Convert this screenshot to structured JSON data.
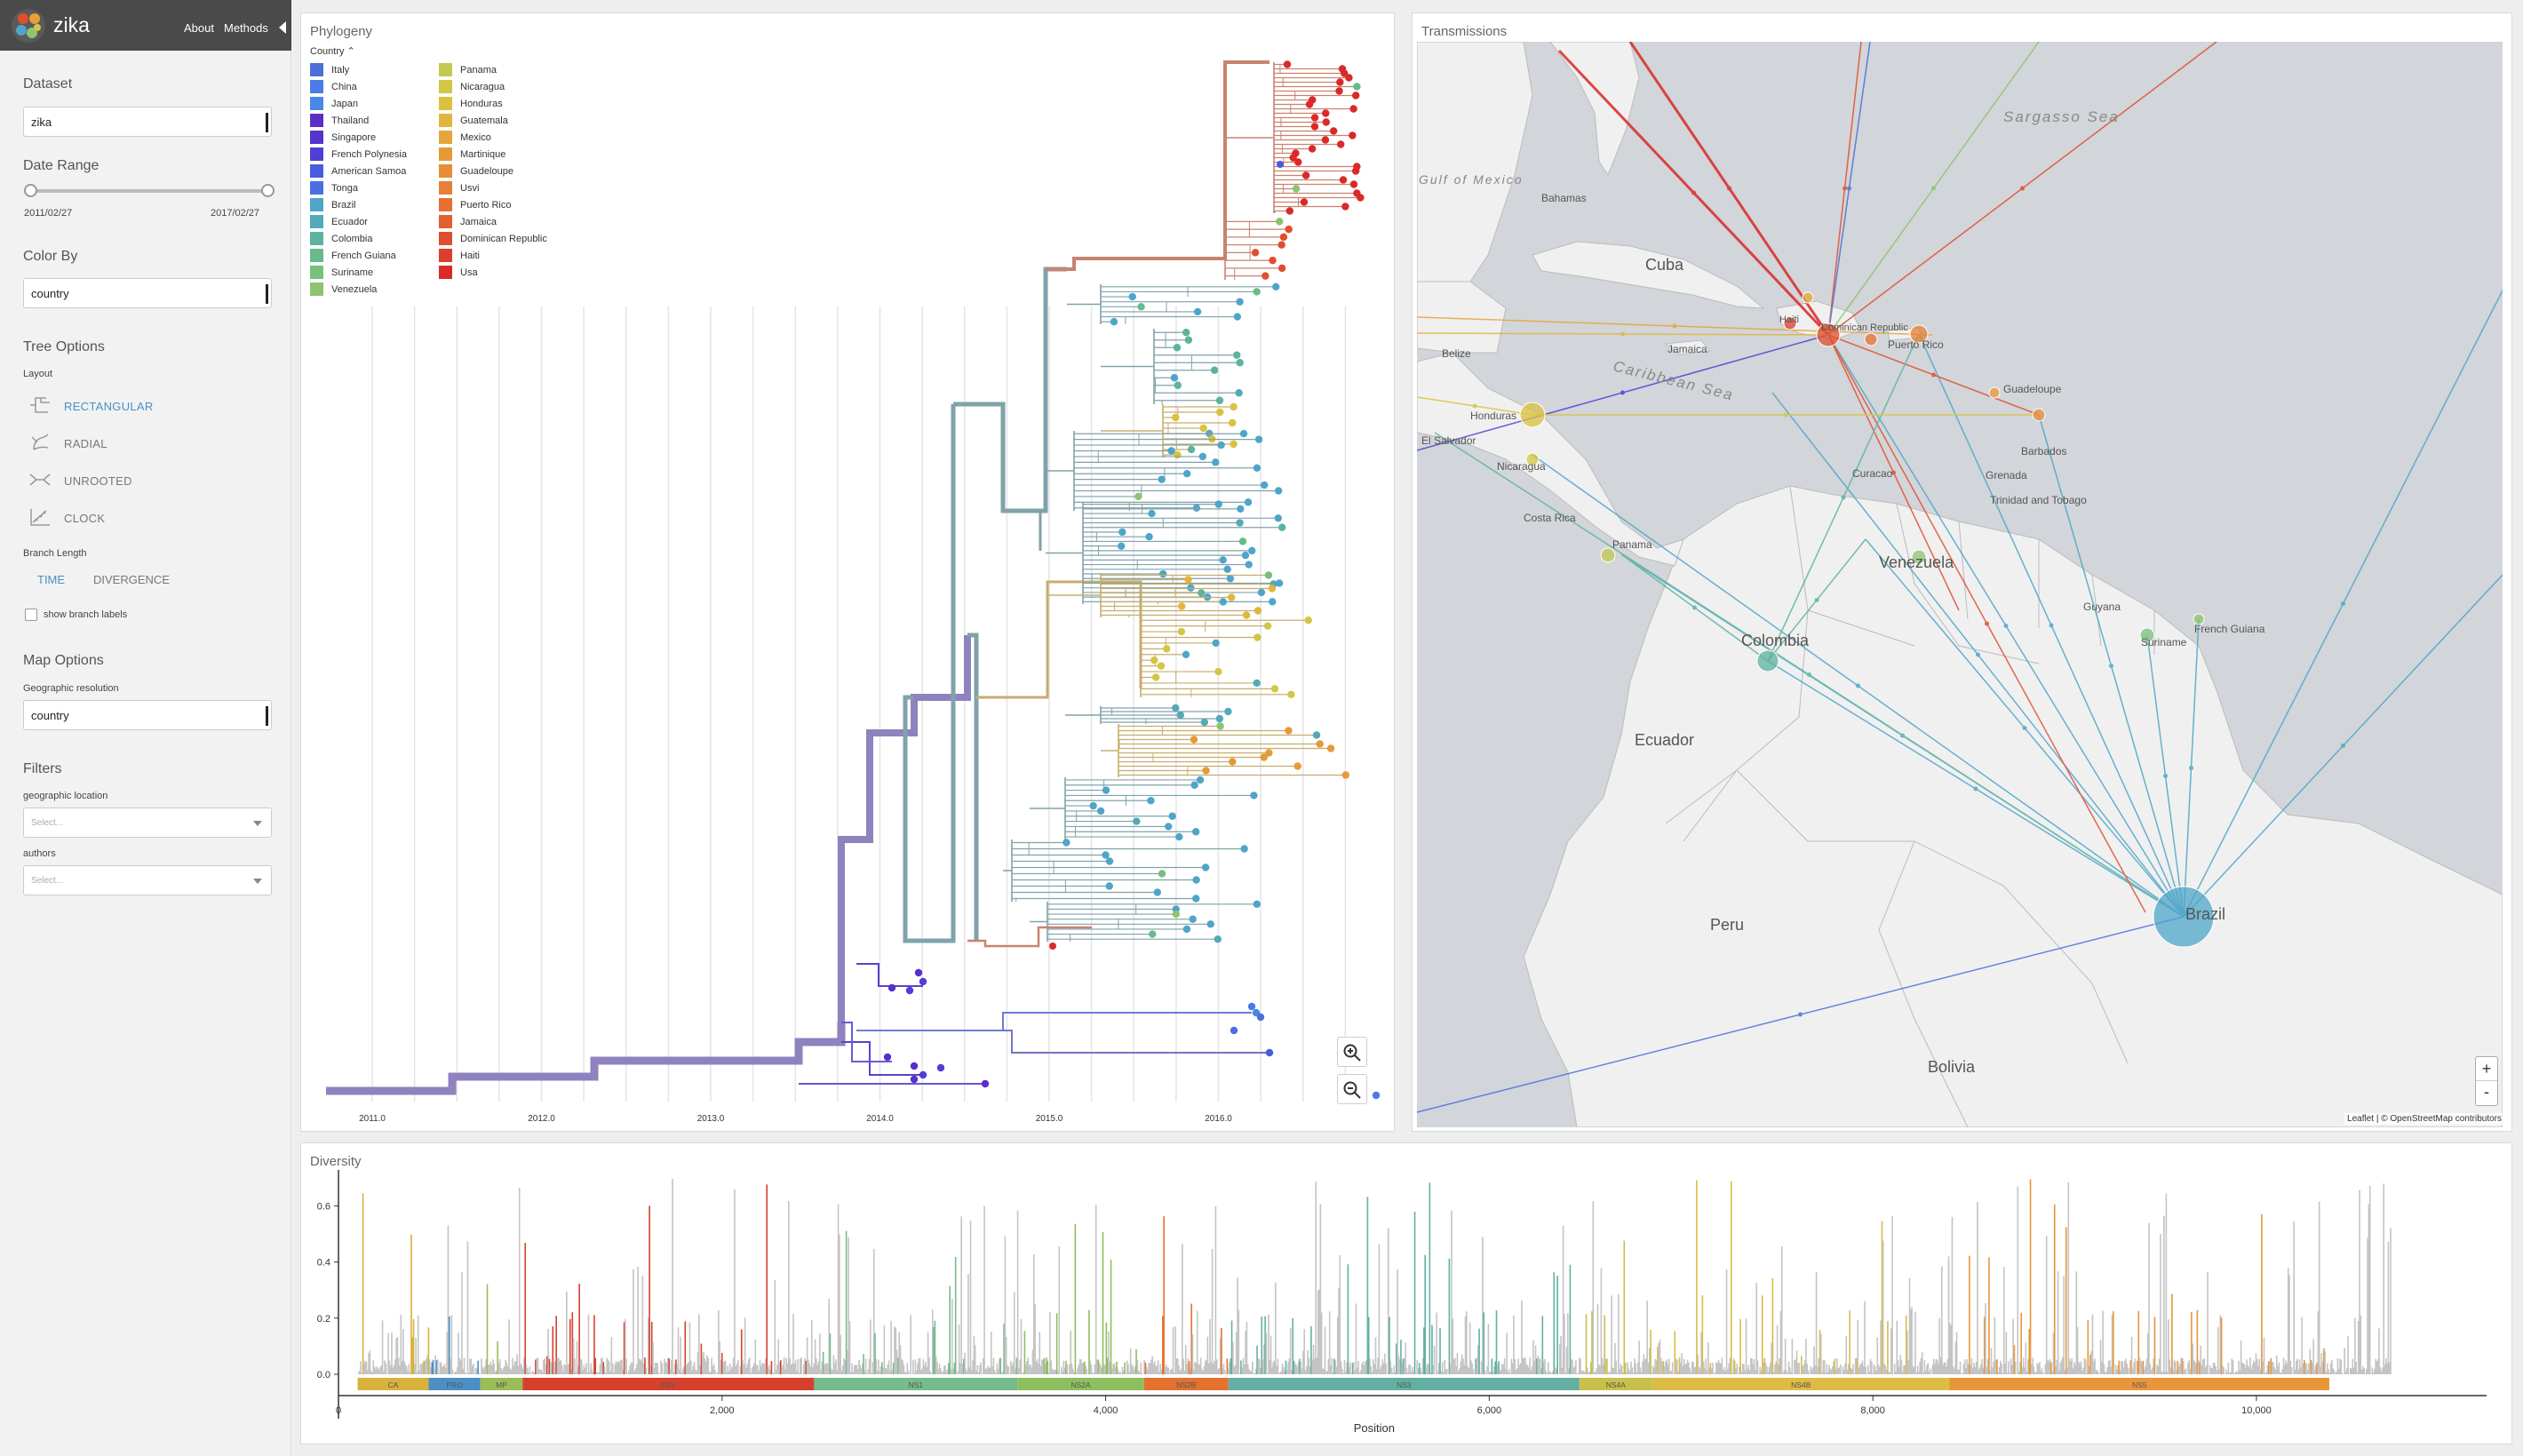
{
  "header": {
    "app_name": "zika",
    "nav": [
      "About",
      "Methods"
    ]
  },
  "sidebar": {
    "dataset": {
      "heading": "Dataset",
      "value": "zika"
    },
    "date_range": {
      "heading": "Date Range",
      "start": "2011/02/27",
      "end": "2017/02/27",
      "slider_start_fraction": 0.0,
      "slider_end_fraction": 1.0
    },
    "color_by": {
      "heading": "Color By",
      "value": "country"
    },
    "tree_options": {
      "heading": "Tree Options",
      "layout_label": "Layout",
      "layouts": [
        "RECTANGULAR",
        "RADIAL",
        "UNROOTED",
        "CLOCK"
      ],
      "active_layout": "RECTANGULAR",
      "branch_length_label": "Branch Length",
      "branch_length_options": [
        "TIME",
        "DIVERGENCE"
      ],
      "active_branch_length": "TIME",
      "show_branch_labels": "show branch labels"
    },
    "map_options": {
      "heading": "Map Options",
      "geo_label": "Geographic resolution",
      "value": "country"
    },
    "filters": {
      "heading": "Filters",
      "geo_label": "geographic location",
      "authors_label": "authors",
      "placeholder": "Select..."
    }
  },
  "phylogeny": {
    "title": "Phylogeny",
    "legend_title": "Country",
    "legend": [
      {
        "label": "Italy",
        "color": "#4c6fd8"
      },
      {
        "label": "China",
        "color": "#4a7ce6"
      },
      {
        "label": "Japan",
        "color": "#4a88e4"
      },
      {
        "label": "Thailand",
        "color": "#5a2fc9"
      },
      {
        "label": "Singapore",
        "color": "#5533cc"
      },
      {
        "label": "French Polynesia",
        "color": "#4d3fd8"
      },
      {
        "label": "American Samoa",
        "color": "#4a5be0"
      },
      {
        "label": "Tonga",
        "color": "#4a6fe0"
      },
      {
        "label": "Brazil",
        "color": "#4fa5c9"
      },
      {
        "label": "Ecuador",
        "color": "#54a9b8"
      },
      {
        "label": "Colombia",
        "color": "#5db39d"
      },
      {
        "label": "French Guiana",
        "color": "#67ba8c"
      },
      {
        "label": "Suriname",
        "color": "#78c07c"
      },
      {
        "label": "Venezuela",
        "color": "#8dc46f"
      },
      {
        "label": "Panama",
        "color": "#c3c84f"
      },
      {
        "label": "Nicaragua",
        "color": "#d2c646"
      },
      {
        "label": "Honduras",
        "color": "#dcc040"
      },
      {
        "label": "Guatemala",
        "color": "#e0b63c"
      },
      {
        "label": "Mexico",
        "color": "#e4a63a"
      },
      {
        "label": "Martinique",
        "color": "#e59a38"
      },
      {
        "label": "Guadeloupe",
        "color": "#e68e36"
      },
      {
        "label": "Usvi",
        "color": "#e68034"
      },
      {
        "label": "Puerto Rico",
        "color": "#e57032"
      },
      {
        "label": "Jamaica",
        "color": "#e25f30"
      },
      {
        "label": "Dominican Republic",
        "color": "#df4e2e"
      },
      {
        "label": "Haiti",
        "color": "#dc3e2c"
      },
      {
        "label": "Usa",
        "color": "#d92a29"
      }
    ],
    "x_ticks": [
      "2011.0",
      "2012.0",
      "2013.0",
      "2014.0",
      "2015.0",
      "2016.0"
    ]
  },
  "transmissions": {
    "title": "Transmissions",
    "attribution": "Leaflet | © OpenStreetMap contributors",
    "zoom_in": "+",
    "zoom_out": "-",
    "labels_large": [
      "Cuba",
      "Venezuela",
      "Colombia",
      "Ecuador",
      "Peru",
      "Bolivia",
      "Brazil"
    ],
    "labels_small": [
      "Bahamas",
      "Jamaica",
      "Honduras",
      "Nicaragua",
      "Costa Rica",
      "Panama",
      "Puerto Rico",
      "Guadeloupe",
      "Barbados",
      "Grenada",
      "Trinidad and Tobago",
      "Guyana",
      "Suriname",
      "French Guiana",
      "Dominican Republic",
      "Haiti",
      "Curacao",
      "El Salvador",
      "Belize"
    ],
    "sea_labels": [
      "Sargasso Sea",
      "Caribbean Sea",
      "Gulf of Mexico"
    ]
  },
  "diversity": {
    "title": "Diversity",
    "xlabel": "Position",
    "y_ticks": [
      "0.0",
      "0.2",
      "0.4",
      "0.6"
    ],
    "x_ticks": [
      "0",
      "2,000",
      "4,000",
      "6,000",
      "8,000",
      "10,000"
    ],
    "genes": [
      {
        "name": "CA",
        "start": 100,
        "end": 470,
        "color": "#d9b13c"
      },
      {
        "name": "PRO",
        "start": 470,
        "end": 740,
        "color": "#4c8fc4"
      },
      {
        "name": "MP",
        "start": 740,
        "end": 960,
        "color": "#9bbd56"
      },
      {
        "name": "ENV",
        "start": 960,
        "end": 2480,
        "color": "#d6412e"
      },
      {
        "name": "NS1",
        "start": 2480,
        "end": 3540,
        "color": "#76bb8b"
      },
      {
        "name": "NS2A",
        "start": 3540,
        "end": 4200,
        "color": "#8ebf5f"
      },
      {
        "name": "NS2B",
        "start": 4200,
        "end": 4640,
        "color": "#e4712f"
      },
      {
        "name": "NS3",
        "start": 4640,
        "end": 6470,
        "color": "#63b0a2"
      },
      {
        "name": "NS4A",
        "start": 6470,
        "end": 6850,
        "color": "#c9c04a"
      },
      {
        "name": "NS4B",
        "start": 6850,
        "end": 8400,
        "color": "#dcbc44"
      },
      {
        "name": "NS5",
        "start": 8400,
        "end": 10380,
        "color": "#e8963a"
      }
    ]
  }
}
